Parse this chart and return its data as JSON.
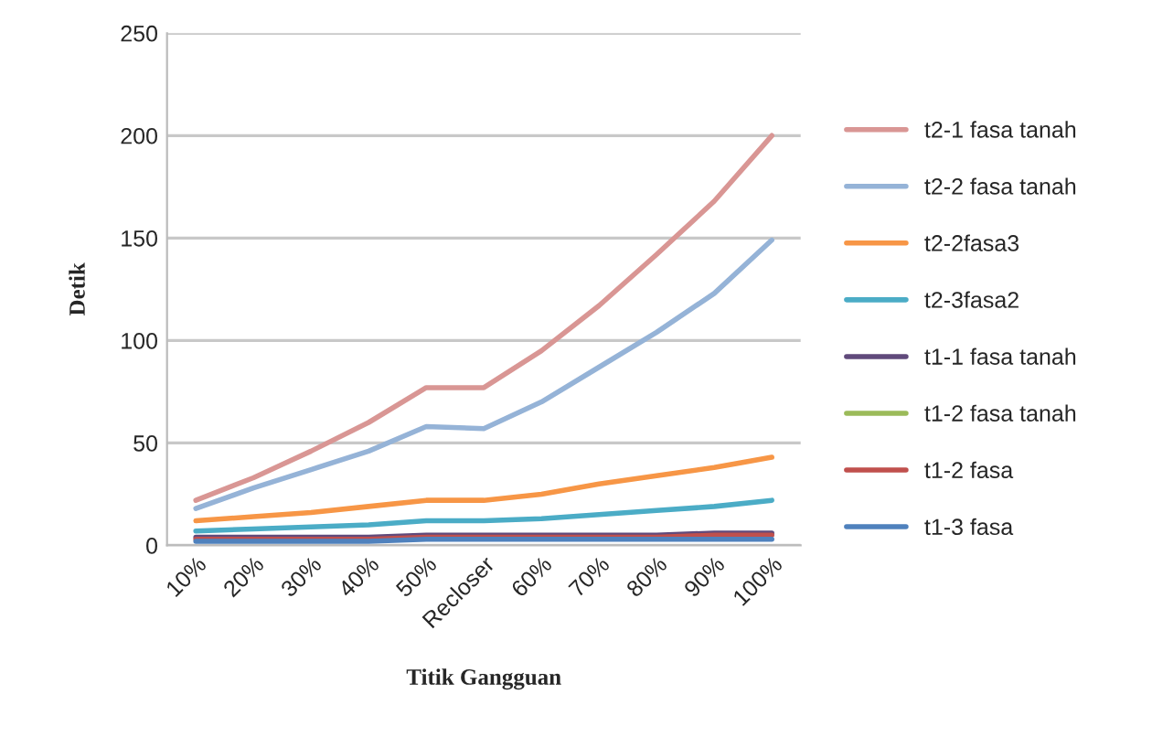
{
  "chart_data": {
    "type": "line",
    "xlabel": "Titik Gangguan",
    "ylabel": "Detik",
    "categories": [
      "10%",
      "20%",
      "30%",
      "40%",
      "50%",
      "Recloser",
      "60%",
      "70%",
      "80%",
      "90%",
      "100%"
    ],
    "series": [
      {
        "name": "t2-1 fasa tanah",
        "color": "#d99694",
        "values": [
          22,
          33,
          46,
          60,
          77,
          77,
          95,
          117,
          142,
          168,
          200
        ]
      },
      {
        "name": "t2-2 fasa tanah",
        "color": "#95b3d7",
        "values": [
          18,
          28,
          37,
          46,
          58,
          57,
          70,
          87,
          104,
          123,
          149
        ]
      },
      {
        "name": "t2-2fasa3",
        "color": "#f79646",
        "values": [
          12,
          14,
          16,
          19,
          22,
          22,
          25,
          30,
          34,
          38,
          43
        ]
      },
      {
        "name": "t2-3fasa2",
        "color": "#4bacc6",
        "values": [
          7,
          8,
          9,
          10,
          12,
          12,
          13,
          15,
          17,
          19,
          22
        ]
      },
      {
        "name": "t1-1 fasa tanah",
        "color": "#604a7b",
        "values": [
          4,
          4,
          4,
          4,
          5,
          5,
          5,
          5,
          5,
          6,
          6
        ]
      },
      {
        "name": "t1-2 fasa tanah",
        "color": "#9bbb59",
        "values": [
          null,
          null,
          null,
          null,
          null,
          null,
          null,
          null,
          null,
          null,
          null
        ]
      },
      {
        "name": "t1-2 fasa",
        "color": "#c0504d",
        "values": [
          3,
          3,
          3,
          3,
          4,
          4,
          4,
          4,
          4,
          5,
          5
        ]
      },
      {
        "name": "t1-3 fasa",
        "color": "#4f81bd",
        "values": [
          2,
          2,
          2,
          2,
          3,
          3,
          3,
          3,
          3,
          3,
          3
        ]
      }
    ],
    "ylim": [
      0,
      250
    ],
    "yticks": [
      0,
      50,
      100,
      150,
      200,
      250
    ],
    "grid": "y",
    "legend": "right",
    "marker": "none",
    "line_style": "solid"
  }
}
